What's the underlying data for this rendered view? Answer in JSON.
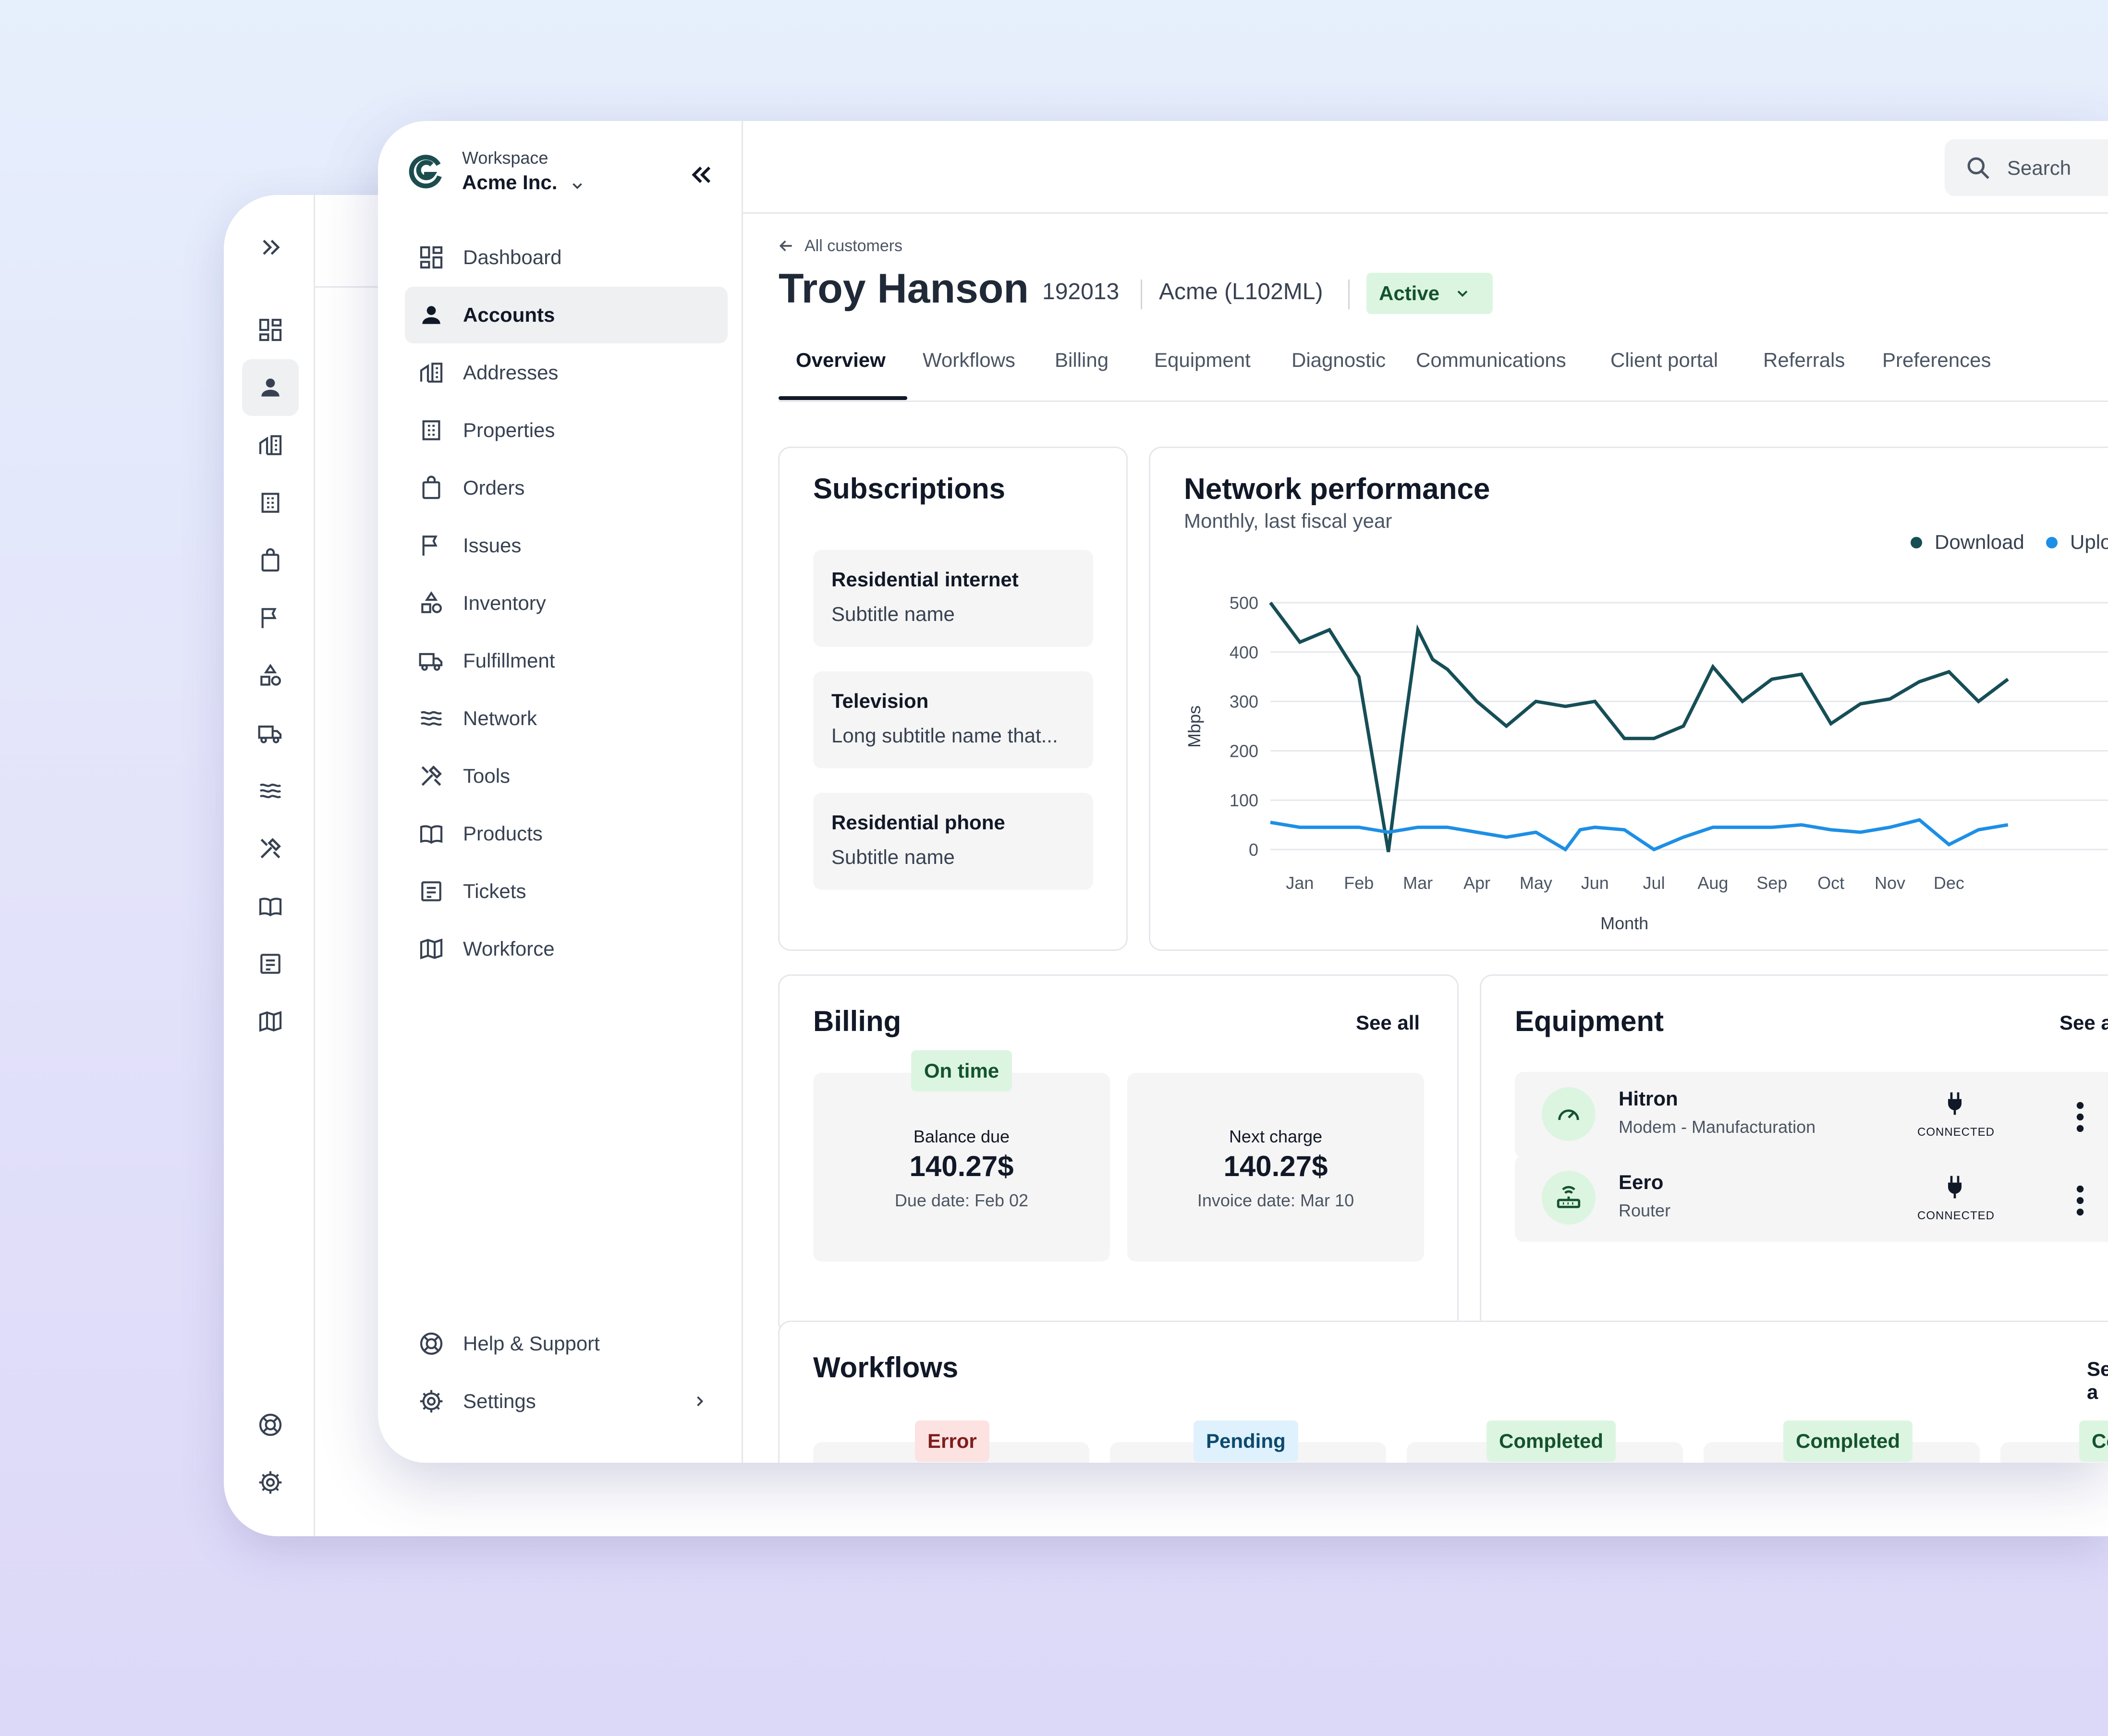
{
  "workspace": {
    "label": "Workspace",
    "name": "Acme Inc."
  },
  "nav": {
    "items": [
      {
        "label": "Dashboard",
        "icon": "dashboard-icon"
      },
      {
        "label": "Accounts",
        "icon": "user-icon",
        "active": true
      },
      {
        "label": "Addresses",
        "icon": "building-icon"
      },
      {
        "label": "Properties",
        "icon": "buildings-icon"
      },
      {
        "label": "Orders",
        "icon": "shopping-bag-icon"
      },
      {
        "label": "Issues",
        "icon": "flag-icon"
      },
      {
        "label": "Inventory",
        "icon": "shapes-icon"
      },
      {
        "label": "Fulfillment",
        "icon": "truck-icon"
      },
      {
        "label": "Network",
        "icon": "waves-icon"
      },
      {
        "label": "Tools",
        "icon": "tools-icon"
      },
      {
        "label": "Products",
        "icon": "book-icon"
      },
      {
        "label": "Tickets",
        "icon": "ticket-icon"
      },
      {
        "label": "Workforce",
        "icon": "map-icon"
      }
    ],
    "help": "Help & Support",
    "settings": "Settings"
  },
  "search": {
    "placeholder": "Search"
  },
  "customer": {
    "back_label": "All customers",
    "name": "Troy Hanson",
    "id": "192013",
    "company": "Acme (L102ML)",
    "status": "Active"
  },
  "tabs": [
    "Overview",
    "Workflows",
    "Billing",
    "Equipment",
    "Diagnostic",
    "Communications",
    "Client portal",
    "Referrals",
    "Preferences"
  ],
  "subscriptions": {
    "title": "Subscriptions",
    "items": [
      {
        "name": "Residential internet",
        "subtitle": "Subtitle name"
      },
      {
        "name": "Television",
        "subtitle": "Long subtitle name that..."
      },
      {
        "name": "Residential phone",
        "subtitle": "Subtitle name"
      }
    ]
  },
  "network": {
    "title": "Network performance",
    "subtitle": "Monthly, last fiscal year"
  },
  "chart_data": {
    "type": "line",
    "xlabel": "Month",
    "ylabel": "Mbps",
    "ylim": [
      0,
      500
    ],
    "yticks": [
      0,
      100,
      200,
      300,
      400,
      500
    ],
    "grid": true,
    "legend_position": "top-right",
    "colors": {
      "Download": "#164e56",
      "Upload": "#1d8fe6"
    },
    "x_ticks": [
      "Jan",
      "Feb",
      "Mar",
      "Apr",
      "May",
      "Jun",
      "Jul",
      "Aug",
      "Sep",
      "Oct",
      "Nov",
      "Dec"
    ],
    "series": [
      {
        "name": "Download",
        "x": [
          0.5,
          1.0,
          1.5,
          2.0,
          2.5,
          2.75,
          3.0,
          3.25,
          3.5,
          4.0,
          4.5,
          5.0,
          5.5,
          6.0,
          6.5,
          7.0,
          7.5,
          8.0,
          8.5,
          9.0,
          9.5,
          10.0,
          10.5,
          11.0,
          11.5,
          12.0,
          12.5,
          13.0
        ],
        "values": [
          500,
          420,
          445,
          350,
          -5,
          230,
          445,
          385,
          365,
          300,
          250,
          300,
          290,
          300,
          225,
          225,
          250,
          370,
          300,
          345,
          355,
          255,
          295,
          305,
          340,
          360,
          300,
          345
        ]
      },
      {
        "name": "Upload",
        "x": [
          0.5,
          1.0,
          1.5,
          2.0,
          2.5,
          3.0,
          3.5,
          4.0,
          4.5,
          5.0,
          5.5,
          5.75,
          6.0,
          6.5,
          7.0,
          7.5,
          8.0,
          8.5,
          9.0,
          9.5,
          10.0,
          10.5,
          11.0,
          11.5,
          12.0,
          12.5,
          13.0
        ],
        "values": [
          55,
          45,
          45,
          45,
          35,
          45,
          45,
          35,
          25,
          35,
          0,
          40,
          45,
          40,
          0,
          25,
          45,
          45,
          45,
          50,
          40,
          35,
          45,
          60,
          10,
          40,
          50
        ]
      }
    ]
  },
  "billing": {
    "title": "Billing",
    "see_all": "See all",
    "status": "On time",
    "balance": {
      "label": "Balance due",
      "amount": "140.27$",
      "date": "Due date: Feb 02"
    },
    "next": {
      "label": "Next charge",
      "amount": "140.27$",
      "date": "Invoice date: Mar 10"
    }
  },
  "equipment": {
    "title": "Equipment",
    "see_all": "See a",
    "items": [
      {
        "name": "Hitron",
        "desc": "Modem - Manufacturation",
        "status": "CONNECTED",
        "icon": "gauge-icon"
      },
      {
        "name": "Eero",
        "desc": "Router",
        "status": "CONNECTED",
        "icon": "router-icon"
      }
    ]
  },
  "workflows": {
    "title": "Workflows",
    "see_all": "See a",
    "items": [
      {
        "status": "Error",
        "color": "#fde2e2"
      },
      {
        "status": "Pending",
        "color": "#dff1fd"
      },
      {
        "status": "Completed",
        "color": "#dcf5e1"
      },
      {
        "status": "Completed",
        "color": "#dcf5e1"
      },
      {
        "status": "Co",
        "color": "#dcf5e1"
      }
    ]
  }
}
